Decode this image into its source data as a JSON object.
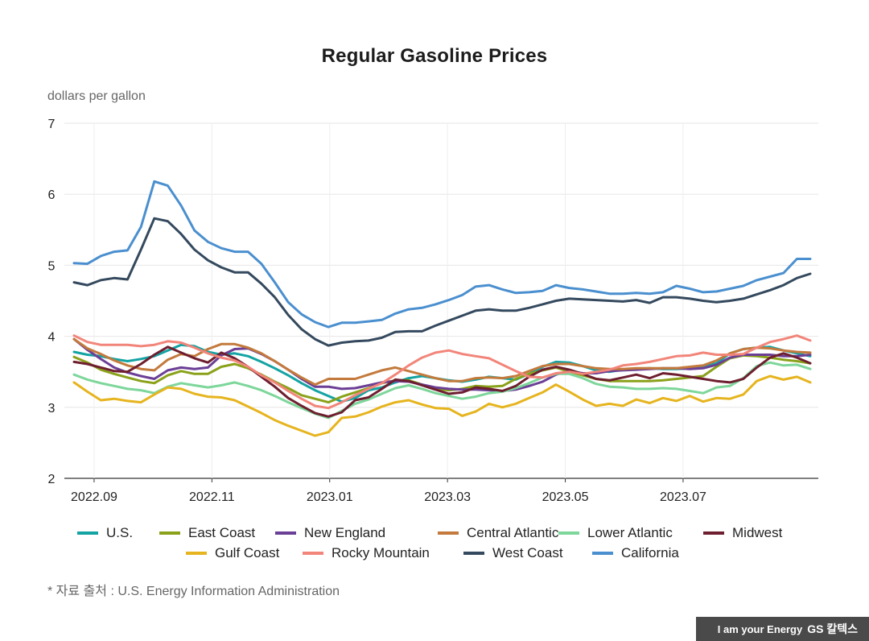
{
  "chart_data": {
    "type": "line",
    "title": "Regular Gasoline Prices",
    "ylabel": "dollars per gallon",
    "xlabel": "",
    "ylim": [
      2,
      7
    ],
    "yticks": [
      2,
      3,
      4,
      5,
      6,
      7
    ],
    "x_ticks": [
      {
        "label": "2022.09",
        "i": 1.5
      },
      {
        "label": "2022.11",
        "i": 10.3
      },
      {
        "label": "2023.01",
        "i": 19.1
      },
      {
        "label": "2023.03",
        "i": 27.9
      },
      {
        "label": "2023.05",
        "i": 36.7
      },
      {
        "label": "2023.07",
        "i": 45.5
      }
    ],
    "series": [
      {
        "name": "U.S.",
        "color": "#14a3a3",
        "values": [
          3.78,
          3.74,
          3.72,
          3.68,
          3.65,
          3.68,
          3.72,
          3.8,
          3.88,
          3.86,
          3.78,
          3.74,
          3.76,
          3.72,
          3.64,
          3.55,
          3.45,
          3.34,
          3.24,
          3.16,
          3.08,
          3.13,
          3.24,
          3.28,
          3.35,
          3.41,
          3.44,
          3.41,
          3.38,
          3.36,
          3.39,
          3.43,
          3.41,
          3.39,
          3.47,
          3.57,
          3.64,
          3.63,
          3.58,
          3.52,
          3.5,
          3.53,
          3.54,
          3.55,
          3.54,
          3.54,
          3.55,
          3.57,
          3.62,
          3.76,
          3.82,
          3.84,
          3.85,
          3.8,
          3.76,
          3.72
        ]
      },
      {
        "name": "East Coast",
        "color": "#8aa11a",
        "values": [
          3.71,
          3.63,
          3.53,
          3.47,
          3.42,
          3.37,
          3.34,
          3.45,
          3.51,
          3.47,
          3.47,
          3.57,
          3.61,
          3.55,
          3.46,
          3.36,
          3.27,
          3.17,
          3.12,
          3.07,
          3.15,
          3.21,
          3.27,
          3.34,
          3.38,
          3.38,
          3.32,
          3.26,
          3.24,
          3.26,
          3.3,
          3.29,
          3.3,
          3.4,
          3.47,
          3.52,
          3.56,
          3.5,
          3.45,
          3.4,
          3.37,
          3.37,
          3.37,
          3.37,
          3.38,
          3.4,
          3.42,
          3.44,
          3.57,
          3.69,
          3.73,
          3.72,
          3.7,
          3.67,
          3.65,
          3.62
        ]
      },
      {
        "name": "New England",
        "color": "#6c3f96",
        "values": [
          3.96,
          3.81,
          3.68,
          3.56,
          3.49,
          3.44,
          3.4,
          3.52,
          3.56,
          3.54,
          3.56,
          3.73,
          3.82,
          3.83,
          3.75,
          3.65,
          3.53,
          3.4,
          3.29,
          3.29,
          3.26,
          3.27,
          3.31,
          3.35,
          3.37,
          3.36,
          3.32,
          3.28,
          3.26,
          3.25,
          3.25,
          3.24,
          3.23,
          3.25,
          3.3,
          3.36,
          3.46,
          3.51,
          3.48,
          3.48,
          3.51,
          3.52,
          3.53,
          3.54,
          3.55,
          3.55,
          3.54,
          3.55,
          3.6,
          3.7,
          3.74,
          3.74,
          3.74,
          3.72,
          3.72,
          3.74
        ]
      },
      {
        "name": "Central Atlantic",
        "color": "#c37a3c",
        "values": [
          3.96,
          3.83,
          3.75,
          3.66,
          3.59,
          3.54,
          3.52,
          3.67,
          3.75,
          3.72,
          3.82,
          3.89,
          3.89,
          3.84,
          3.76,
          3.65,
          3.53,
          3.42,
          3.32,
          3.4,
          3.4,
          3.4,
          3.46,
          3.52,
          3.56,
          3.51,
          3.46,
          3.41,
          3.37,
          3.37,
          3.41,
          3.42,
          3.41,
          3.44,
          3.51,
          3.58,
          3.61,
          3.61,
          3.58,
          3.55,
          3.54,
          3.54,
          3.55,
          3.55,
          3.55,
          3.55,
          3.57,
          3.59,
          3.66,
          3.76,
          3.82,
          3.84,
          3.83,
          3.8,
          3.78,
          3.77
        ]
      },
      {
        "name": "Lower Atlantic",
        "color": "#7dd69a",
        "values": [
          3.46,
          3.39,
          3.34,
          3.3,
          3.26,
          3.24,
          3.2,
          3.29,
          3.34,
          3.31,
          3.28,
          3.31,
          3.35,
          3.3,
          3.24,
          3.16,
          3.07,
          2.99,
          2.91,
          2.85,
          2.95,
          3.05,
          3.11,
          3.19,
          3.27,
          3.31,
          3.26,
          3.2,
          3.16,
          3.12,
          3.15,
          3.2,
          3.22,
          3.27,
          3.34,
          3.42,
          3.47,
          3.47,
          3.41,
          3.33,
          3.29,
          3.28,
          3.26,
          3.26,
          3.27,
          3.26,
          3.23,
          3.2,
          3.28,
          3.3,
          3.41,
          3.58,
          3.63,
          3.59,
          3.6,
          3.54
        ]
      },
      {
        "name": "Midwest",
        "color": "#6e1f2f",
        "values": [
          3.64,
          3.61,
          3.56,
          3.51,
          3.5,
          3.61,
          3.74,
          3.85,
          3.77,
          3.69,
          3.63,
          3.77,
          3.69,
          3.57,
          3.43,
          3.29,
          3.13,
          3.02,
          2.92,
          2.87,
          2.93,
          3.1,
          3.14,
          3.26,
          3.39,
          3.37,
          3.31,
          3.25,
          3.19,
          3.21,
          3.28,
          3.26,
          3.23,
          3.3,
          3.43,
          3.53,
          3.57,
          3.53,
          3.47,
          3.4,
          3.38,
          3.42,
          3.46,
          3.41,
          3.48,
          3.46,
          3.43,
          3.4,
          3.37,
          3.35,
          3.4,
          3.56,
          3.7,
          3.76,
          3.7,
          3.62
        ]
      },
      {
        "name": "Gulf Coast",
        "color": "#e6b41e",
        "values": [
          3.35,
          3.22,
          3.1,
          3.12,
          3.09,
          3.07,
          3.18,
          3.28,
          3.26,
          3.19,
          3.15,
          3.14,
          3.1,
          3.01,
          2.92,
          2.82,
          2.74,
          2.67,
          2.6,
          2.65,
          2.85,
          2.87,
          2.93,
          3.01,
          3.07,
          3.1,
          3.04,
          2.99,
          2.98,
          2.88,
          2.94,
          3.05,
          3.0,
          3.05,
          3.13,
          3.21,
          3.32,
          3.22,
          3.11,
          3.02,
          3.05,
          3.02,
          3.11,
          3.06,
          3.13,
          3.09,
          3.16,
          3.08,
          3.13,
          3.12,
          3.18,
          3.37,
          3.44,
          3.39,
          3.43,
          3.35
        ]
      },
      {
        "name": "Rocky Mountain",
        "color": "#f2857a",
        "values": [
          4.01,
          3.92,
          3.88,
          3.88,
          3.88,
          3.86,
          3.88,
          3.93,
          3.91,
          3.84,
          3.76,
          3.7,
          3.66,
          3.57,
          3.45,
          3.35,
          3.23,
          3.12,
          3.02,
          2.99,
          3.07,
          3.17,
          3.26,
          3.34,
          3.46,
          3.59,
          3.7,
          3.77,
          3.8,
          3.75,
          3.72,
          3.69,
          3.6,
          3.51,
          3.43,
          3.42,
          3.48,
          3.5,
          3.47,
          3.5,
          3.53,
          3.59,
          3.61,
          3.64,
          3.68,
          3.72,
          3.73,
          3.77,
          3.74,
          3.74,
          3.75,
          3.84,
          3.92,
          3.96,
          4.01,
          3.94
        ]
      },
      {
        "name": "West Coast",
        "color": "#34495e",
        "values": [
          4.76,
          4.72,
          4.79,
          4.82,
          4.8,
          5.22,
          5.66,
          5.62,
          5.44,
          5.22,
          5.07,
          4.97,
          4.9,
          4.9,
          4.74,
          4.55,
          4.3,
          4.1,
          3.96,
          3.87,
          3.91,
          3.93,
          3.94,
          3.98,
          4.06,
          4.07,
          4.07,
          4.15,
          4.22,
          4.29,
          4.36,
          4.38,
          4.36,
          4.36,
          4.4,
          4.45,
          4.5,
          4.53,
          4.52,
          4.51,
          4.5,
          4.49,
          4.51,
          4.47,
          4.55,
          4.55,
          4.53,
          4.5,
          4.48,
          4.5,
          4.53,
          4.59,
          4.65,
          4.72,
          4.82,
          4.88
        ]
      },
      {
        "name": "California",
        "color": "#4a8fcf",
        "values": [
          5.03,
          5.02,
          5.13,
          5.19,
          5.21,
          5.54,
          6.18,
          6.12,
          5.84,
          5.49,
          5.33,
          5.24,
          5.19,
          5.19,
          5.02,
          4.76,
          4.48,
          4.31,
          4.2,
          4.13,
          4.19,
          4.19,
          4.21,
          4.23,
          4.32,
          4.38,
          4.4,
          4.45,
          4.51,
          4.58,
          4.7,
          4.72,
          4.66,
          4.61,
          4.62,
          4.64,
          4.72,
          4.68,
          4.66,
          4.63,
          4.6,
          4.6,
          4.61,
          4.6,
          4.62,
          4.71,
          4.67,
          4.62,
          4.63,
          4.67,
          4.71,
          4.79,
          4.84,
          4.89,
          5.09,
          5.09
        ]
      }
    ]
  },
  "legend_order": [
    "U.S.",
    "East Coast",
    "New England",
    "Central Atlantic",
    "Lower Atlantic",
    "Midwest",
    "Gulf Coast",
    "Rocky Mountain",
    "West Coast",
    "California"
  ],
  "footer": {
    "source": "* 자료 출처 : U.S. Energy Information Administration",
    "brand_tagline": "I am your Energy",
    "brand_logo": "GS 칼텍스"
  }
}
